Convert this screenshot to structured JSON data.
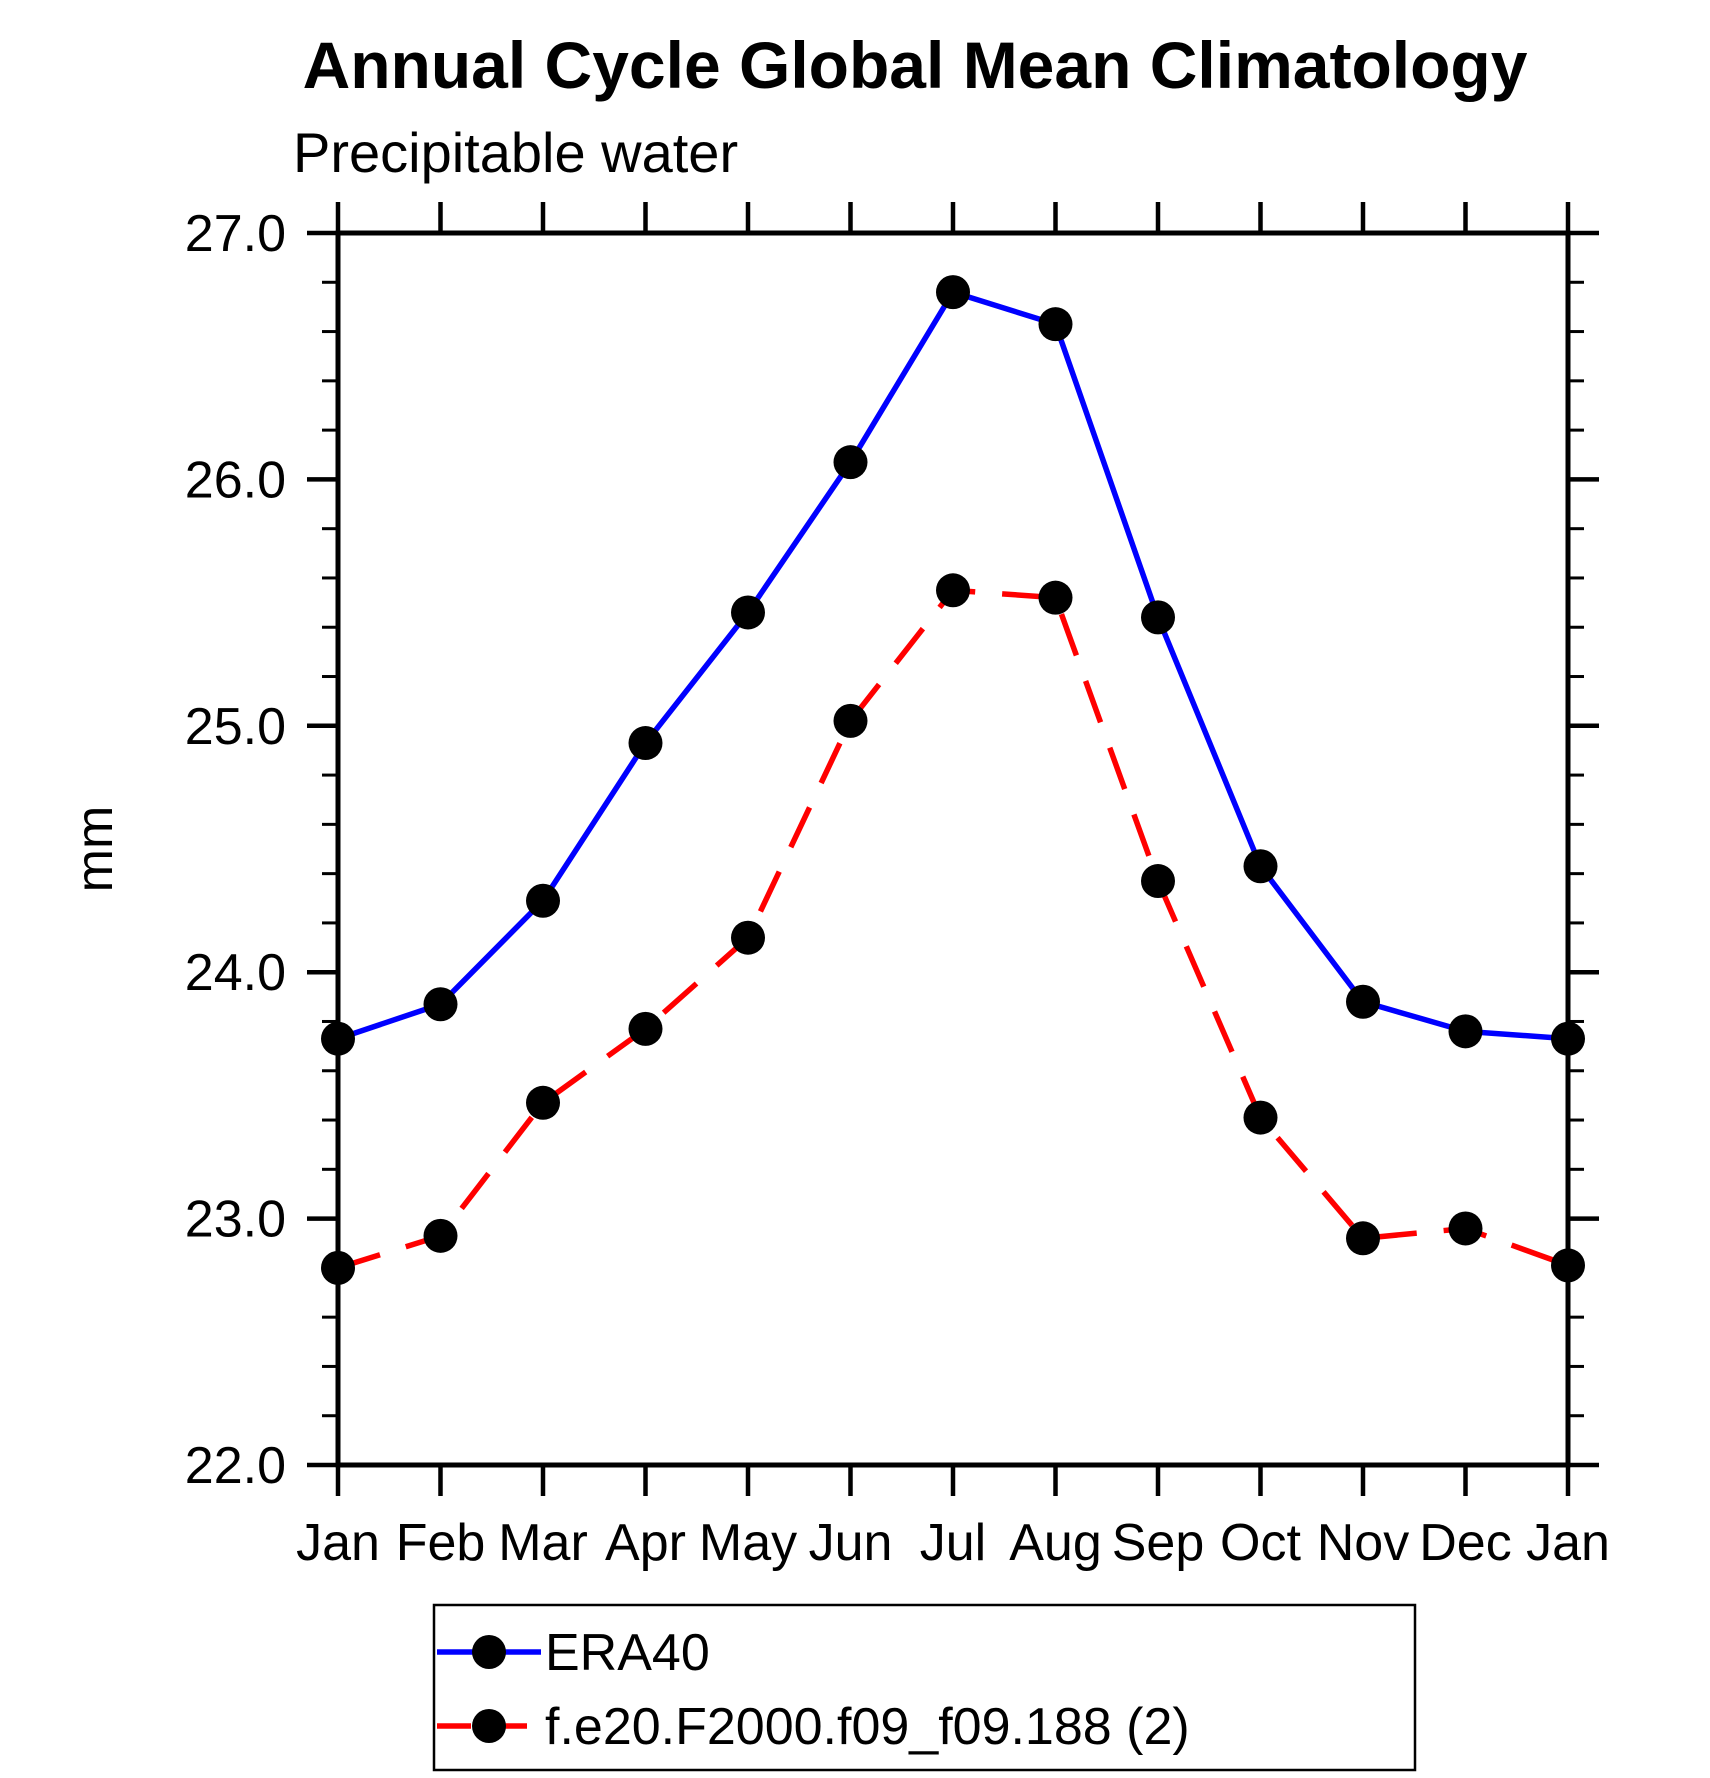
{
  "chart_data": {
    "type": "line",
    "title": "Annual Cycle Global Mean Climatology",
    "subtitle": "Precipitable water",
    "xlabel": "",
    "ylabel": "mm",
    "categories": [
      "Jan",
      "Feb",
      "Mar",
      "Apr",
      "May",
      "Jun",
      "Jul",
      "Aug",
      "Sep",
      "Oct",
      "Nov",
      "Dec",
      "Jan"
    ],
    "ylim": [
      22.0,
      27.0
    ],
    "ytick_major": 1.0,
    "ytick_minor": 0.2,
    "ytick_labels": [
      "22.0",
      "23.0",
      "24.0",
      "25.0",
      "26.0",
      "27.0"
    ],
    "grid": false,
    "legend_position": "bottom",
    "colors": {
      "era40_line": "#0000ff",
      "model_line": "#ff0000",
      "marker": "#000000",
      "axis": "#000000"
    },
    "series": [
      {
        "name": "ERA40",
        "color": "#0000ff",
        "style": "solid",
        "marker": "circle",
        "marker_color": "#000000",
        "values": [
          23.73,
          23.87,
          24.29,
          24.93,
          25.46,
          26.07,
          26.76,
          26.63,
          25.44,
          24.43,
          23.88,
          23.76,
          23.73
        ]
      },
      {
        "name": "f.e20.F2000.f09_f09.188 (2)",
        "color": "#ff0000",
        "style": "dashed",
        "marker": "circle",
        "marker_color": "#000000",
        "values": [
          22.8,
          22.93,
          23.47,
          23.77,
          24.14,
          25.02,
          25.55,
          25.52,
          24.37,
          23.41,
          22.92,
          22.96,
          22.81
        ]
      }
    ]
  }
}
